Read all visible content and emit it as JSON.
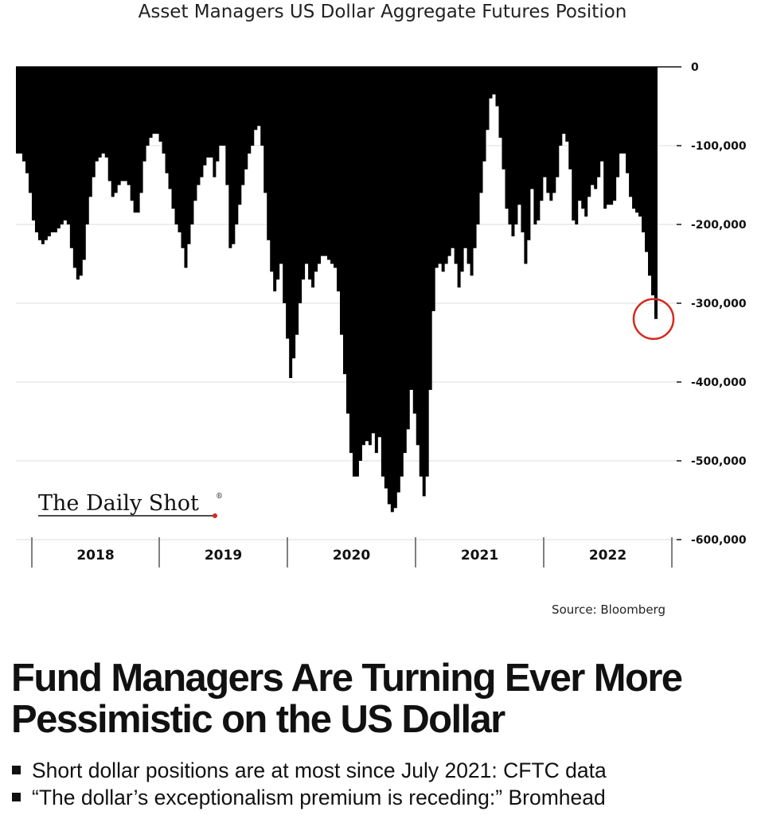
{
  "chart_data": {
    "type": "area",
    "title": "Asset Managers US Dollar Aggregate Futures Position",
    "x_unit": "weekly, Jan 2018 - Sep 2022",
    "x_ticks": [
      "2018",
      "2019",
      "2020",
      "2021",
      "2022"
    ],
    "y_ticks": [
      "0",
      "-100,000",
      "-200,000",
      "-300,000",
      "-400,000",
      "-500,000",
      "-600,000"
    ],
    "ylim": [
      -600000,
      0
    ],
    "grid": true,
    "fill_color": "#000000",
    "highlight": {
      "x": "2022-09",
      "y": -320000,
      "marker": "circle",
      "color": "#d42a1f"
    },
    "series": [
      {
        "values": [
          -110000,
          -110000,
          -120000,
          -135000,
          -160000,
          -195000,
          -210000,
          -220000,
          -225000,
          -220000,
          -215000,
          -210000,
          -210000,
          -205000,
          -200000,
          -195000,
          -200000,
          -230000,
          -255000,
          -270000,
          -265000,
          -245000,
          -200000,
          -165000,
          -140000,
          -120000,
          -115000,
          -110000,
          -115000,
          -145000,
          -165000,
          -160000,
          -150000,
          -145000,
          -145000,
          -150000,
          -170000,
          -185000,
          -185000,
          -160000,
          -120000,
          -100000,
          -90000,
          -85000,
          -85000,
          -95000,
          -110000,
          -135000,
          -155000,
          -180000,
          -200000,
          -210000,
          -230000,
          -255000,
          -225000,
          -200000,
          -170000,
          -150000,
          -140000,
          -125000,
          -115000,
          -115000,
          -140000,
          -120000,
          -100000,
          -100000,
          -150000,
          -230000,
          -225000,
          -200000,
          -175000,
          -150000,
          -130000,
          -110000,
          -100000,
          -80000,
          -75000,
          -100000,
          -160000,
          -220000,
          -260000,
          -285000,
          -270000,
          -250000,
          -300000,
          -345000,
          -395000,
          -370000,
          -340000,
          -300000,
          -270000,
          -250000,
          -270000,
          -280000,
          -260000,
          -250000,
          -240000,
          -240000,
          -245000,
          -250000,
          -255000,
          -285000,
          -340000,
          -390000,
          -440000,
          -490000,
          -520000,
          -520000,
          -500000,
          -480000,
          -475000,
          -480000,
          -465000,
          -490000,
          -470000,
          -520000,
          -535000,
          -555000,
          -565000,
          -560000,
          -540000,
          -520000,
          -490000,
          -460000,
          -410000,
          -440000,
          -480000,
          -520000,
          -545000,
          -520000,
          -410000,
          -310000,
          -255000,
          -250000,
          -260000,
          -250000,
          -240000,
          -230000,
          -250000,
          -280000,
          -260000,
          -230000,
          -250000,
          -265000,
          -230000,
          -200000,
          -160000,
          -120000,
          -80000,
          -40000,
          -35000,
          -50000,
          -90000,
          -130000,
          -180000,
          -200000,
          -215000,
          -200000,
          -175000,
          -210000,
          -250000,
          -220000,
          -155000,
          -200000,
          -195000,
          -170000,
          -140000,
          -160000,
          -170000,
          -160000,
          -140000,
          -100000,
          -85000,
          -95000,
          -130000,
          -195000,
          -200000,
          -170000,
          -180000,
          -190000,
          -165000,
          -150000,
          -155000,
          -140000,
          -120000,
          -180000,
          -175000,
          -175000,
          -170000,
          -140000,
          -110000,
          -110000,
          -135000,
          -165000,
          -180000,
          -185000,
          -190000,
          -210000,
          -235000,
          -265000,
          -290000,
          -320000
        ]
      }
    ]
  },
  "brand": {
    "logo_text": "The Daily Shot",
    "registered": "®"
  },
  "source": "Source: Bloomberg",
  "headline": "Fund Managers Are Turning Ever More Pessimistic on the US Dollar",
  "bullets": [
    "Short dollar positions are at most since July 2021: CFTC data",
    "“The dollar’s exceptionalism premium is receding:” Bromhead"
  ]
}
